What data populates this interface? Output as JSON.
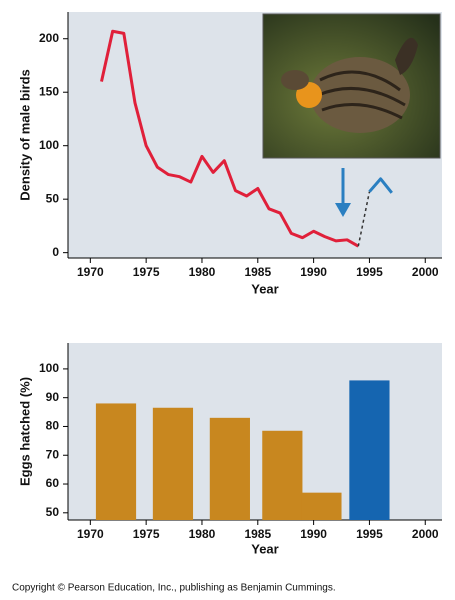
{
  "chart_data": [
    {
      "type": "line",
      "ylabel": "Density of male birds",
      "xlabel": "Year",
      "xlim": [
        1968,
        2001.5
      ],
      "xticks": [
        1970,
        1975,
        1980,
        1985,
        1990,
        1995,
        2000
      ],
      "ylim": [
        -5,
        225
      ],
      "yticks": [
        0,
        50,
        100,
        150,
        200
      ],
      "series": [
        {
          "color": "#e0203a",
          "x": [
            1971,
            1972,
            1973,
            1974,
            1975,
            1976,
            1977,
            1978,
            1979,
            1980,
            1981,
            1982,
            1983,
            1984,
            1985,
            1986,
            1987,
            1988,
            1989,
            1990,
            1991,
            1992,
            1993,
            1994
          ],
          "values": [
            160,
            207,
            205,
            140,
            100,
            80,
            73,
            71,
            66,
            90,
            75,
            86,
            58,
            53,
            60,
            41,
            37,
            18,
            14,
            20,
            15,
            11,
            12,
            6
          ]
        },
        {
          "color": "#2a7fc1",
          "x": [
            1995,
            1996,
            1997
          ],
          "values": [
            57,
            69,
            56
          ]
        }
      ]
    },
    {
      "type": "bar",
      "ylabel": "Eggs hatched (%)",
      "xlabel": "Year",
      "xlim": [
        1968,
        2001.5
      ],
      "xticks": [
        1970,
        1975,
        1980,
        1985,
        1990,
        1995,
        2000
      ],
      "ylim": [
        47.5,
        109
      ],
      "yticks": [
        50,
        60,
        70,
        80,
        90,
        100
      ],
      "x": [
        1972.3,
        1977.4,
        1982.5,
        1987.2,
        1990.7,
        1995
      ],
      "values": [
        88,
        86.5,
        83,
        78.5,
        57,
        96
      ],
      "colors": [
        "#c8871f",
        "#c8871f",
        "#c8871f",
        "#c8871f",
        "#c8871f",
        "#1565b0"
      ]
    }
  ],
  "footer": "Copyright © Pearson Education, Inc., publishing as Benjamin Cummings."
}
